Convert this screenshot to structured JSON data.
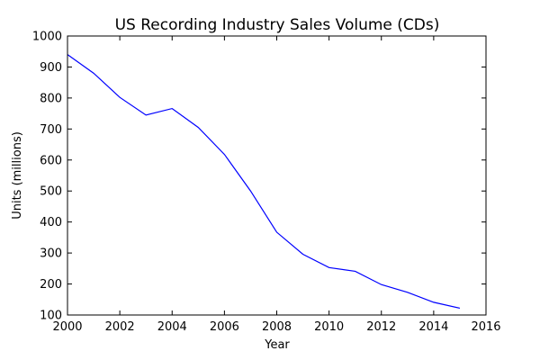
{
  "chart_data": {
    "type": "line",
    "title": "US Recording Industry Sales Volume (CDs)",
    "xlabel": "Year",
    "ylabel": "Units (millions)",
    "xlim": [
      2000,
      2016
    ],
    "ylim": [
      100,
      1000
    ],
    "xticks": [
      2000,
      2002,
      2004,
      2006,
      2008,
      2010,
      2012,
      2014,
      2016
    ],
    "yticks": [
      100,
      200,
      300,
      400,
      500,
      600,
      700,
      800,
      900,
      1000
    ],
    "grid": false,
    "series": [
      {
        "color": "#0000ff",
        "x": [
          2000,
          2001,
          2002,
          2003,
          2004,
          2005,
          2006,
          2007,
          2008,
          2009,
          2010,
          2011,
          2012,
          2013,
          2014,
          2015
        ],
        "y": [
          940,
          880,
          802,
          745,
          766,
          705,
          618,
          500,
          367,
          296,
          253,
          241,
          198,
          173,
          141,
          122
        ]
      }
    ]
  }
}
